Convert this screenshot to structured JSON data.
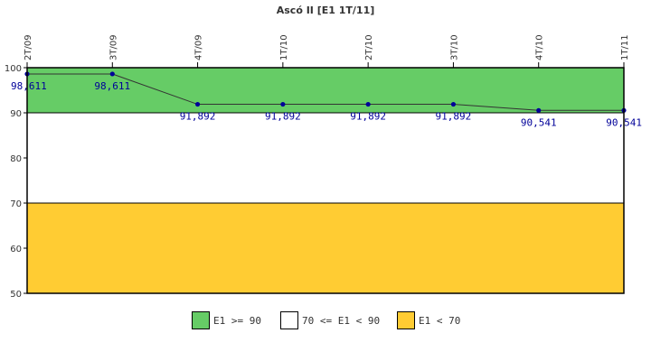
{
  "chart_data": {
    "type": "line",
    "title": "Ascó II [E1 1T/11]",
    "categories": [
      "2T/09",
      "3T/09",
      "4T/09",
      "1T/10",
      "2T/10",
      "3T/10",
      "4T/10",
      "1T/11"
    ],
    "series": [
      {
        "values": [
          98.611,
          98.611,
          91.892,
          91.892,
          91.892,
          91.892,
          90.541,
          90.541
        ],
        "labels": [
          "98,611",
          "98,611",
          "91,892",
          "91,892",
          "91,892",
          "91,892",
          "90,541",
          "90,541"
        ]
      }
    ],
    "ylim": [
      50,
      100
    ],
    "yticks": [
      50,
      60,
      70,
      80,
      90,
      100
    ],
    "bands": [
      {
        "from": 90,
        "to": 100,
        "label": "E1 >= 90",
        "color": "#66cc66"
      },
      {
        "from": 70,
        "to": 90,
        "label": "70 <= E1 < 90",
        "color": "#ffffff"
      },
      {
        "from": 50,
        "to": 70,
        "label": "E1 < 70",
        "color": "#ffcc33"
      }
    ],
    "line_color": "#333333",
    "point_color": "#000099",
    "label_color": "#000099",
    "legend_position": "bottom"
  }
}
